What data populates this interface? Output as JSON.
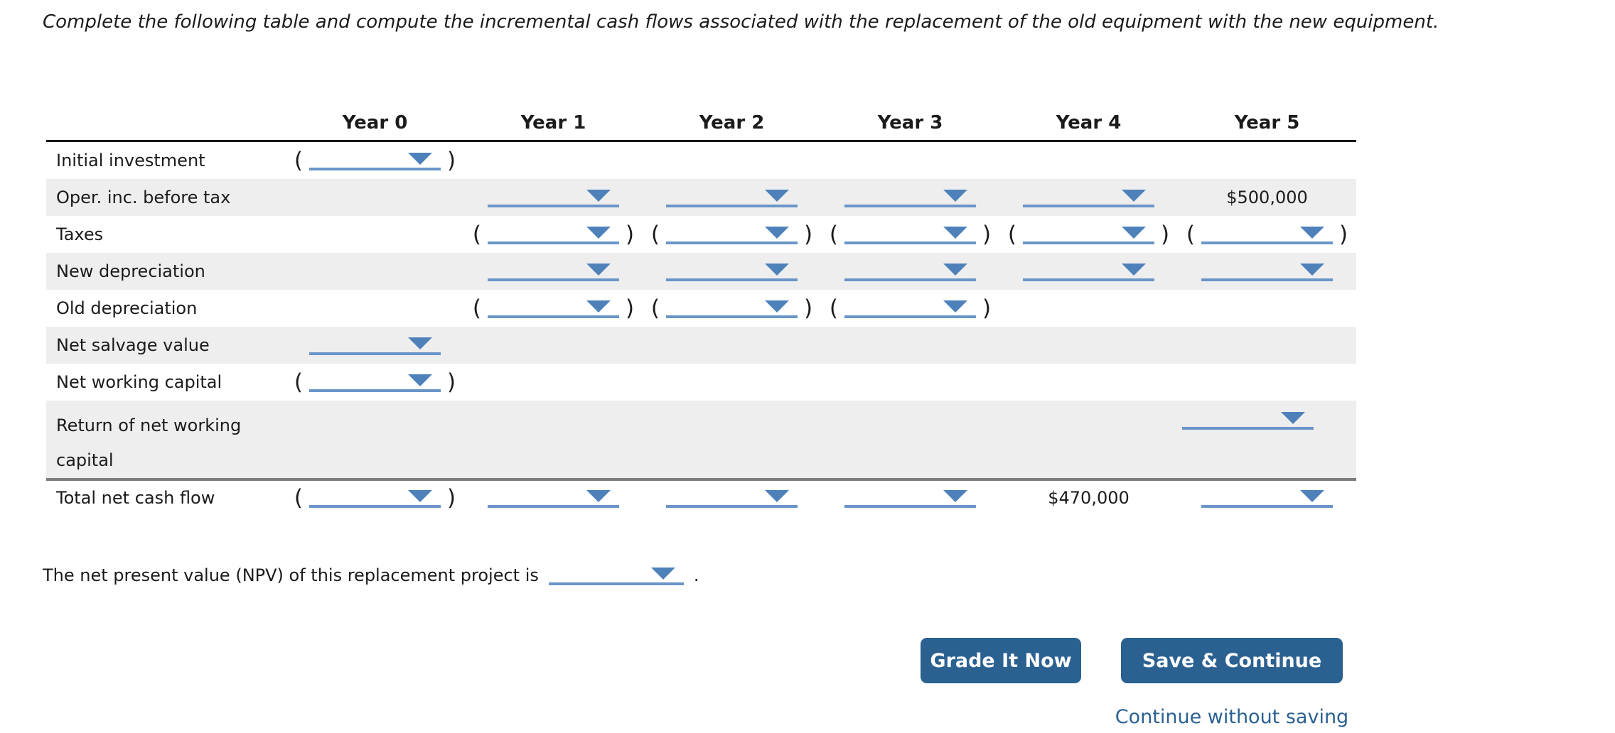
{
  "instruction": "Complete the following table and compute the incremental cash flows associated with the replacement of the old equipment with the new equipment.",
  "table": {
    "paren_open": "(",
    "paren_close": ")",
    "columns": [
      "Year 0",
      "Year 1",
      "Year 2",
      "Year 3",
      "Year 4",
      "Year 5"
    ],
    "rows": [
      {
        "label": "Initial investment",
        "cells": [
          "(dd)",
          "",
          "",
          "",
          "",
          ""
        ]
      },
      {
        "label": "Oper. inc. before tax",
        "cells": [
          "",
          "dd",
          "dd",
          "dd",
          "dd",
          "$500,000"
        ]
      },
      {
        "label": "Taxes",
        "cells": [
          "",
          "(dd)",
          "(dd)",
          "(dd)",
          "(dd)",
          "(dd)"
        ]
      },
      {
        "label": "New depreciation",
        "cells": [
          "",
          "dd",
          "dd",
          "dd",
          "dd",
          "dd"
        ]
      },
      {
        "label": "Old depreciation",
        "cells": [
          "",
          "(dd)",
          "(dd)",
          "(dd)",
          "",
          ""
        ]
      },
      {
        "label": "Net salvage value",
        "cells": [
          "dd",
          "",
          "",
          "",
          "",
          ""
        ]
      },
      {
        "label": "Net working capital",
        "cells": [
          "(dd)",
          "",
          "",
          "",
          "",
          ""
        ]
      },
      {
        "label": "Return of net working capital",
        "cells": [
          "",
          "",
          "",
          "",
          "",
          "dd"
        ]
      },
      {
        "label": "Total net cash flow",
        "cells": [
          "(dd)",
          "dd",
          "dd",
          "dd",
          "$470,000",
          "dd"
        ]
      }
    ]
  },
  "npv": {
    "text_before": "The net present value (NPV) of this replacement project is",
    "text_after": "."
  },
  "actions": {
    "grade_button": "Grade It Now",
    "save_button": "Save & Continue",
    "continue_link": "Continue without saving"
  },
  "colors": {
    "dropdown_line": "#6a95c8",
    "dropdown_arrow": "#4e81ba",
    "button_bg": "#2b6191",
    "link_text": "#2b6191",
    "row_alt_bg": "#eeeeee"
  }
}
